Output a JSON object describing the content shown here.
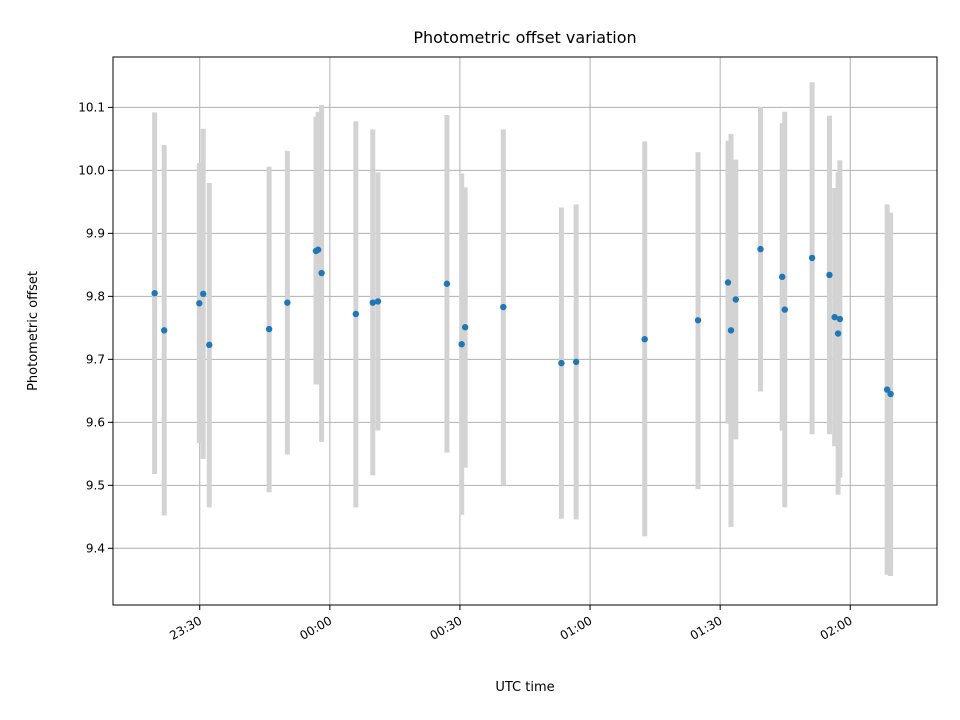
{
  "chart_data": {
    "type": "scatter",
    "title": "Photometric offset variation",
    "xlabel": "UTC time",
    "ylabel": "Photometric offset",
    "x_axis_type": "time",
    "xlim": [
      "23:10",
      "02:20"
    ],
    "ylim": [
      9.31,
      10.18
    ],
    "x_ticks": [
      "23:30",
      "00:00",
      "00:30",
      "01:00",
      "01:30",
      "02:00"
    ],
    "y_ticks": [
      9.4,
      9.5,
      9.6,
      9.7,
      9.8,
      9.9,
      10.0,
      10.1
    ],
    "grid": true,
    "point_color": "#1f77b4",
    "errorbar_color": "#d3d3d3",
    "points": [
      {
        "time": "23:19.6",
        "y": 9.805,
        "lo": 9.518,
        "hi": 10.092
      },
      {
        "time": "23:21.8",
        "y": 9.746,
        "lo": 9.452,
        "hi": 10.04
      },
      {
        "time": "23:29.9",
        "y": 9.789,
        "lo": 9.567,
        "hi": 10.012
      },
      {
        "time": "23:30.8",
        "y": 9.804,
        "lo": 9.542,
        "hi": 10.066
      },
      {
        "time": "23:32.2",
        "y": 9.723,
        "lo": 9.465,
        "hi": 9.98
      },
      {
        "time": "23:46.0",
        "y": 9.748,
        "lo": 9.489,
        "hi": 10.006
      },
      {
        "time": "23:50.2",
        "y": 9.79,
        "lo": 9.549,
        "hi": 10.031
      },
      {
        "time": "23:56.8",
        "y": 9.872,
        "lo": 9.66,
        "hi": 10.085
      },
      {
        "time": "23:57.3",
        "y": 9.874,
        "lo": 9.66,
        "hi": 10.093
      },
      {
        "time": "23:58.1",
        "y": 9.837,
        "lo": 9.569,
        "hi": 10.104
      },
      {
        "time": "00:06.0",
        "y": 9.772,
        "lo": 9.465,
        "hi": 10.078
      },
      {
        "time": "00:09.9",
        "y": 9.79,
        "lo": 9.516,
        "hi": 10.065
      },
      {
        "time": "00:11.1",
        "y": 9.792,
        "lo": 9.587,
        "hi": 9.997
      },
      {
        "time": "00:27.0",
        "y": 9.82,
        "lo": 9.552,
        "hi": 10.088
      },
      {
        "time": "00:30.4",
        "y": 9.724,
        "lo": 9.453,
        "hi": 9.995
      },
      {
        "time": "00:31.2",
        "y": 9.751,
        "lo": 9.528,
        "hi": 9.973
      },
      {
        "time": "00:40.0",
        "y": 9.783,
        "lo": 9.5,
        "hi": 10.065
      },
      {
        "time": "00:53.4",
        "y": 9.694,
        "lo": 9.447,
        "hi": 9.941
      },
      {
        "time": "00:56.8",
        "y": 9.696,
        "lo": 9.446,
        "hi": 9.946
      },
      {
        "time": "01:12.6",
        "y": 9.732,
        "lo": 9.419,
        "hi": 10.046
      },
      {
        "time": "01:24.9",
        "y": 9.762,
        "lo": 9.494,
        "hi": 10.029
      },
      {
        "time": "01:31.8",
        "y": 9.822,
        "lo": 9.598,
        "hi": 10.047
      },
      {
        "time": "01:32.5",
        "y": 9.746,
        "lo": 9.434,
        "hi": 10.058
      },
      {
        "time": "01:33.6",
        "y": 9.795,
        "lo": 9.573,
        "hi": 10.017
      },
      {
        "time": "01:39.3",
        "y": 9.875,
        "lo": 9.649,
        "hi": 10.101
      },
      {
        "time": "01:44.3",
        "y": 9.831,
        "lo": 9.587,
        "hi": 10.075
      },
      {
        "time": "01:44.9",
        "y": 9.779,
        "lo": 9.465,
        "hi": 10.093
      },
      {
        "time": "01:51.2",
        "y": 9.861,
        "lo": 9.581,
        "hi": 10.14
      },
      {
        "time": "01:55.2",
        "y": 9.834,
        "lo": 9.581,
        "hi": 10.087
      },
      {
        "time": "01:56.4",
        "y": 9.767,
        "lo": 9.562,
        "hi": 9.972
      },
      {
        "time": "01:57.2",
        "y": 9.741,
        "lo": 9.485,
        "hi": 9.997
      },
      {
        "time": "01:57.6",
        "y": 9.764,
        "lo": 9.512,
        "hi": 10.016
      },
      {
        "time": "02:08.5",
        "y": 9.652,
        "lo": 9.358,
        "hi": 9.946
      },
      {
        "time": "02:09.3",
        "y": 9.645,
        "lo": 9.356,
        "hi": 9.933
      }
    ]
  }
}
